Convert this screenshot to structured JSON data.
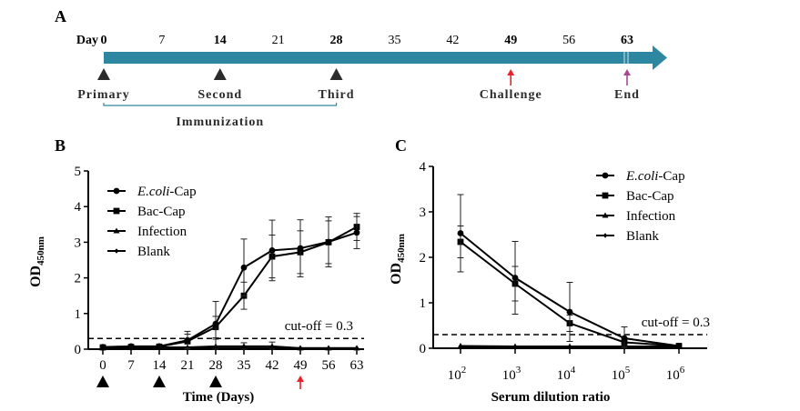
{
  "panel_labels": {
    "a": "A",
    "b": "B",
    "c": "C"
  },
  "timeline": {
    "day_prefix": "Day",
    "ticks": [
      {
        "day": "0",
        "bold": true
      },
      {
        "day": "7",
        "bold": false
      },
      {
        "day": "14",
        "bold": true
      },
      {
        "day": "21",
        "bold": false
      },
      {
        "day": "28",
        "bold": true
      },
      {
        "day": "35",
        "bold": false
      },
      {
        "day": "42",
        "bold": false
      },
      {
        "day": "49",
        "bold": true
      },
      {
        "day": "56",
        "bold": false
      },
      {
        "day": "63",
        "bold": true
      }
    ],
    "events": [
      {
        "label": "Primary",
        "day": 0,
        "marker": "triangle",
        "color": "#2b2b2b"
      },
      {
        "label": "Second",
        "day": 14,
        "marker": "triangle",
        "color": "#2b2b2b"
      },
      {
        "label": "Third",
        "day": 28,
        "marker": "triangle",
        "color": "#2b2b2b"
      },
      {
        "label": "Challenge",
        "day": 49,
        "marker": "arrow",
        "color": "#e8212b"
      },
      {
        "label": "End",
        "day": 63,
        "marker": "arrow",
        "color": "#a8488f"
      }
    ],
    "bracket_label": "Immunization",
    "bar_color": "#2e87a0"
  },
  "chart_data": [
    {
      "type": "line",
      "panel": "B",
      "xlabel": "Time (Days)",
      "ylabel": "OD450nm",
      "ylabel_main": "OD",
      "ylabel_sub": "450nm",
      "x": [
        0,
        7,
        14,
        21,
        28,
        35,
        42,
        49,
        56,
        63
      ],
      "x_tick_labels": [
        "0",
        "7",
        "14",
        "21",
        "28",
        "35",
        "42",
        "49",
        "56",
        "63"
      ],
      "xlim": [
        -3,
        64
      ],
      "ylim": [
        0,
        5
      ],
      "y_ticks": [
        0,
        1,
        2,
        3,
        4,
        5
      ],
      "cutoff": {
        "value": 0.3,
        "label": "cut-off = 0.3"
      },
      "legend_position": "top-left",
      "below_axis_markers": [
        {
          "day": 0,
          "marker": "triangle",
          "color": "#000000"
        },
        {
          "day": 14,
          "marker": "triangle",
          "color": "#000000"
        },
        {
          "day": 28,
          "marker": "triangle",
          "color": "#000000"
        },
        {
          "day": 49,
          "marker": "arrow",
          "color": "#e8212b"
        }
      ],
      "series": [
        {
          "name": "E.coli-Cap",
          "name_italic": "E.coli",
          "name_rest": "-Cap",
          "marker": "circle",
          "values": [
            0.06,
            0.08,
            0.08,
            0.25,
            0.71,
            2.29,
            2.77,
            2.83,
            3.01,
            3.27
          ],
          "errors": [
            0.02,
            0.02,
            0.03,
            0.25,
            0.63,
            0.8,
            0.85,
            0.8,
            0.7,
            0.45
          ]
        },
        {
          "name": "Bac-Cap",
          "marker": "square",
          "values": [
            0.05,
            0.06,
            0.07,
            0.22,
            0.62,
            1.5,
            2.6,
            2.72,
            3.0,
            3.43
          ],
          "errors": [
            0.02,
            0.02,
            0.03,
            0.2,
            0.3,
            0.38,
            0.6,
            0.6,
            0.6,
            0.38
          ]
        },
        {
          "name": "Infection",
          "marker": "triangle",
          "values": [
            0.04,
            0.04,
            0.05,
            0.05,
            0.08,
            0.08,
            0.08,
            0.03,
            0.03,
            0.03
          ],
          "errors": [
            0.01,
            0.01,
            0.02,
            0.15,
            0.2,
            0.1,
            0.12,
            0.02,
            0.02,
            0.02
          ]
        },
        {
          "name": "Blank",
          "marker": "diamond",
          "values": [
            0.03,
            0.03,
            0.03,
            0.03,
            0.03,
            0.03,
            0.03,
            0.03,
            0.03,
            0.03
          ],
          "errors": [
            0.01,
            0.01,
            0.01,
            0.01,
            0.01,
            0.01,
            0.01,
            0.01,
            0.01,
            0.01
          ]
        }
      ]
    },
    {
      "type": "line",
      "panel": "C",
      "xlabel": "Serum dilution ratio",
      "ylabel": "OD450nm",
      "ylabel_main": "OD",
      "ylabel_sub": "450nm",
      "x_log10": [
        2,
        3,
        4,
        5,
        6
      ],
      "x_tick_labels": [
        {
          "base": "10",
          "exp": "2"
        },
        {
          "base": "10",
          "exp": "3"
        },
        {
          "base": "10",
          "exp": "4"
        },
        {
          "base": "10",
          "exp": "5"
        },
        {
          "base": "10",
          "exp": "6"
        }
      ],
      "xlim_log10": [
        1.5,
        6.5
      ],
      "ylim": [
        0,
        4
      ],
      "y_ticks": [
        0,
        1,
        2,
        3,
        4
      ],
      "cutoff": {
        "value": 0.3,
        "label": "cut-off = 0.3"
      },
      "legend_position": "top-right",
      "series": [
        {
          "name": "E.coli-Cap",
          "name_italic": "E.coli",
          "name_rest": "-Cap",
          "marker": "circle",
          "values": [
            2.53,
            1.55,
            0.8,
            0.22,
            0.05
          ],
          "errors": [
            0.85,
            0.8,
            0.65,
            0.25,
            0.02
          ]
        },
        {
          "name": "Bac-Cap",
          "marker": "square",
          "values": [
            2.34,
            1.42,
            0.55,
            0.13,
            0.05
          ],
          "errors": [
            0.35,
            0.38,
            0.18,
            0.1,
            0.02
          ]
        },
        {
          "name": "Infection",
          "marker": "triangle",
          "values": [
            0.05,
            0.04,
            0.04,
            0.04,
            0.04
          ],
          "errors": [
            0.01,
            0.01,
            0.01,
            0.01,
            0.01
          ]
        },
        {
          "name": "Blank",
          "marker": "diamond",
          "values": [
            0.03,
            0.02,
            0.02,
            0.02,
            0.02
          ],
          "errors": [
            0.01,
            0.01,
            0.01,
            0.01,
            0.01
          ]
        }
      ]
    }
  ]
}
